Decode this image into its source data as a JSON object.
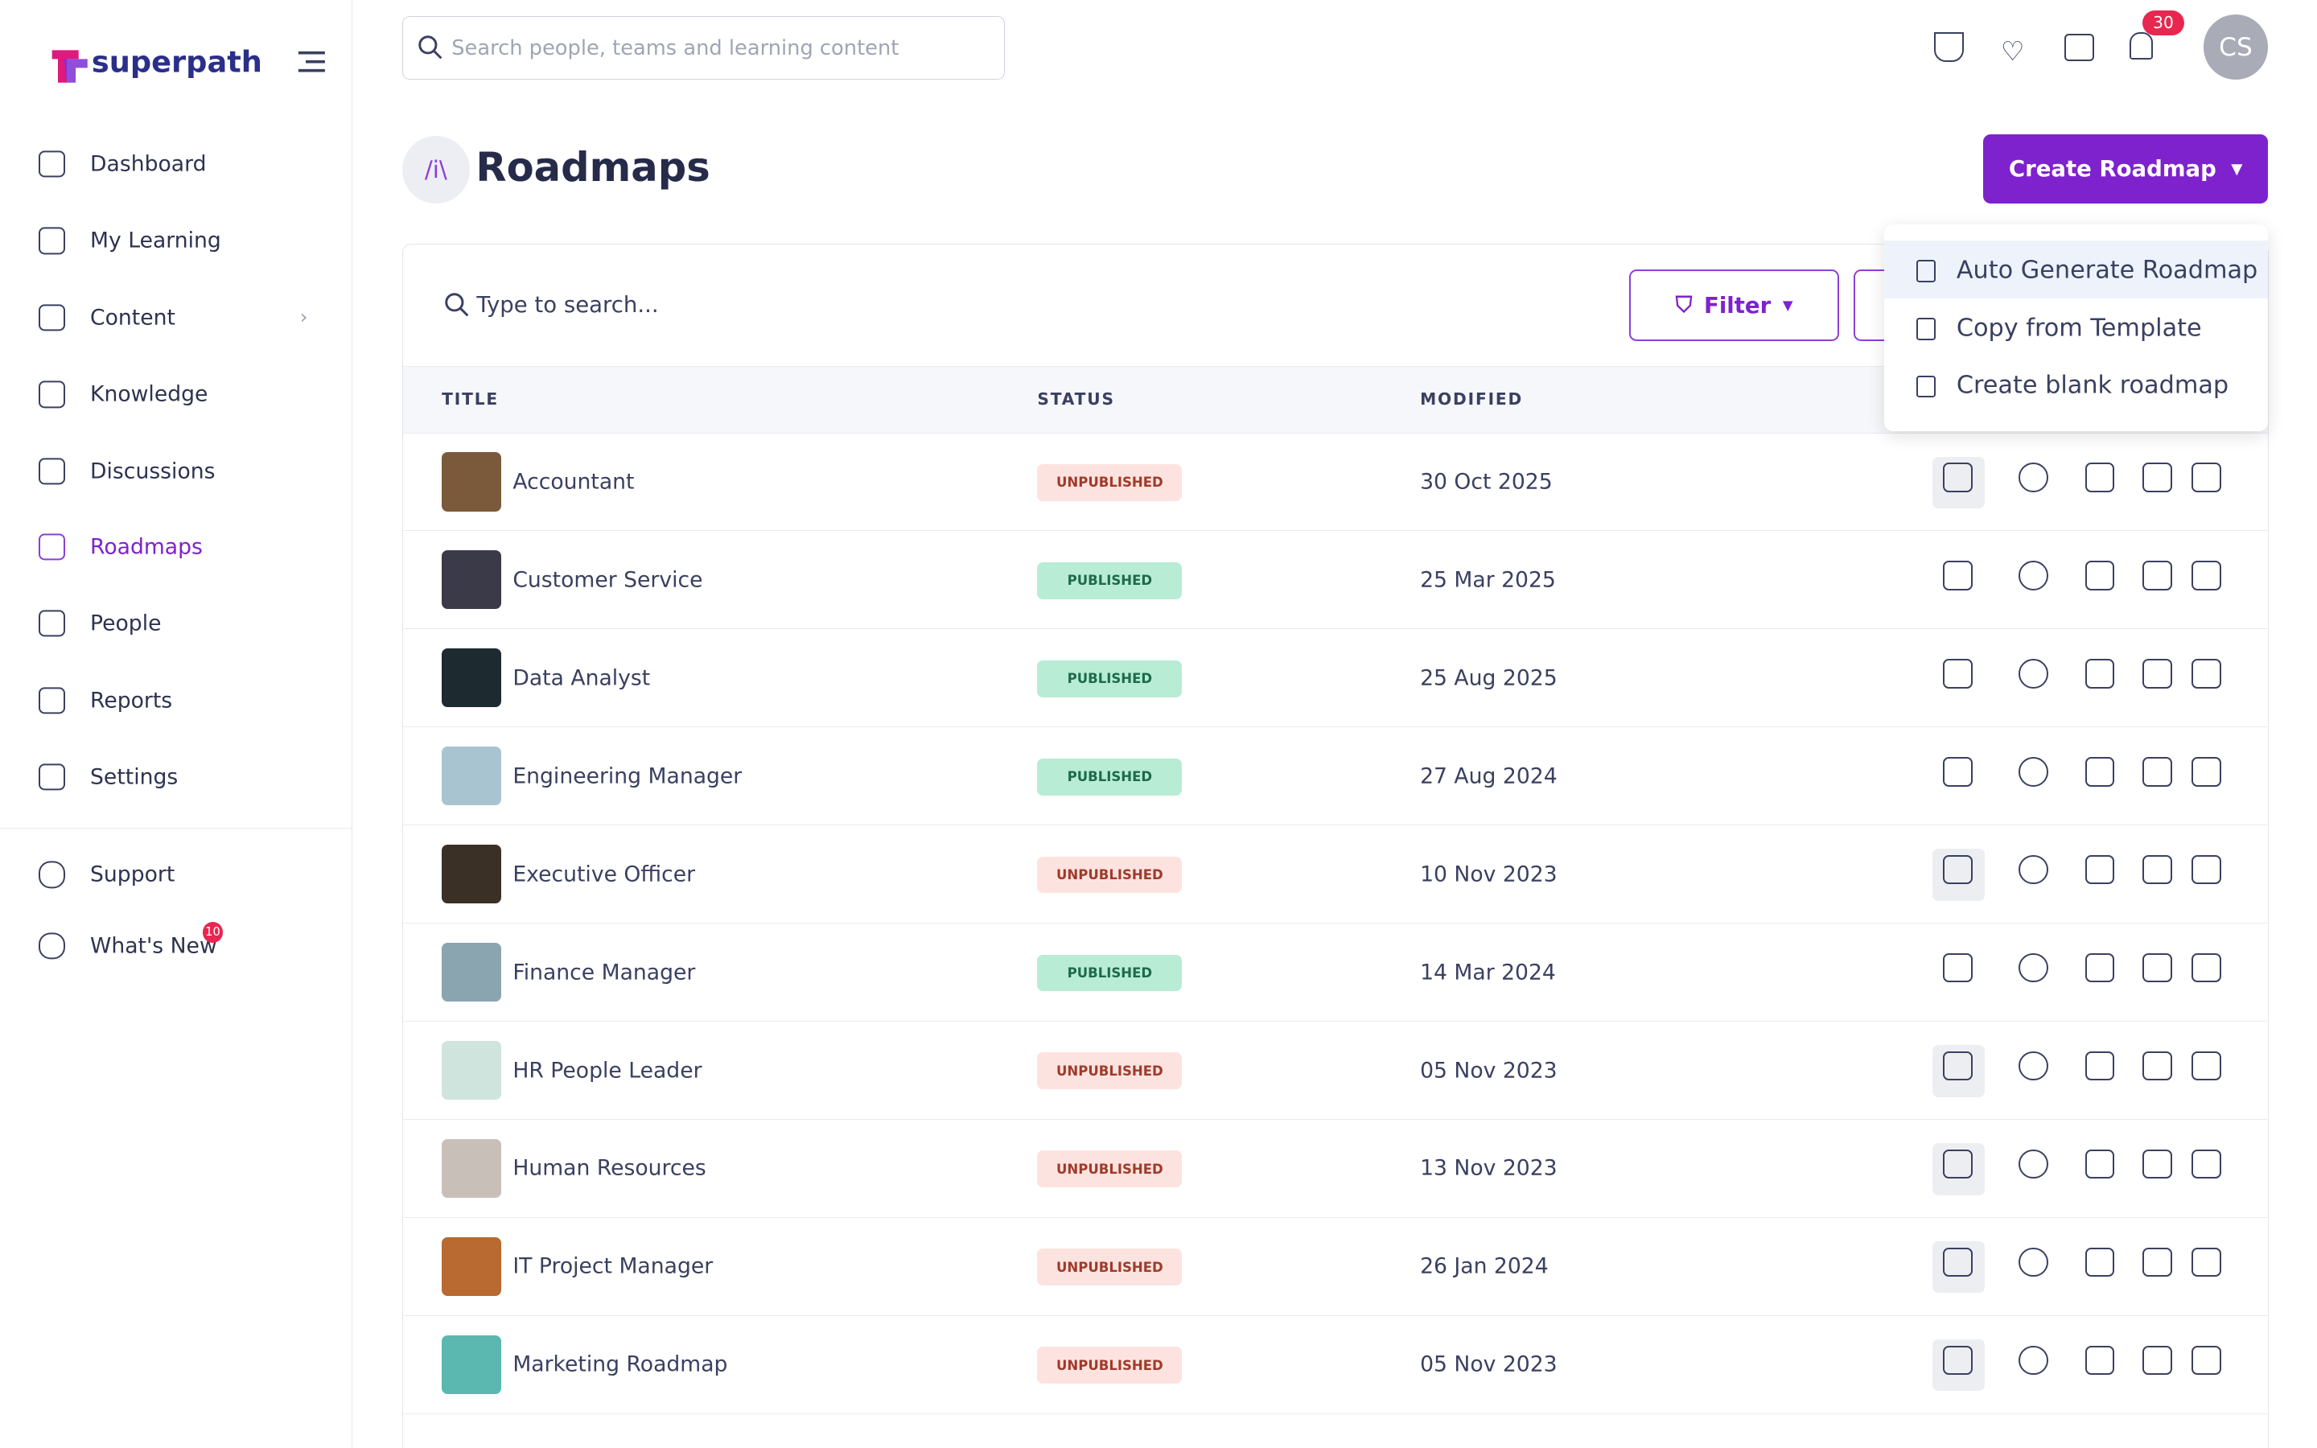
{
  "brand": "superpath",
  "search_placeholder": "Search people, teams and learning content",
  "notifications": 30,
  "avatar": "CS",
  "nav": [
    "Dashboard",
    "My Learning",
    "Content",
    "Knowledge",
    "Discussions",
    "Roadmaps",
    "People",
    "Reports",
    "Settings"
  ],
  "nav_bottom": [
    "Support",
    "What's New"
  ],
  "whats_new_badge": 10,
  "page": {
    "title": "Roadmaps",
    "create_button": "Create Roadmap",
    "menu": [
      "Auto Generate Roadmap",
      "Copy from Template",
      "Create blank roadmap"
    ],
    "table_search": "Type to search...",
    "filter": "Filter",
    "columns": [
      "TITLE",
      "STATUS",
      "MODIFIED"
    ],
    "rows": [
      {
        "title": "Accountant",
        "status": "UNPUBLISHED",
        "modified": "30 Oct 2025"
      },
      {
        "title": "Customer Service",
        "status": "PUBLISHED",
        "modified": "25 Mar 2025"
      },
      {
        "title": "Data Analyst",
        "status": "PUBLISHED",
        "modified": "25 Aug 2025"
      },
      {
        "title": "Engineering Manager",
        "status": "PUBLISHED",
        "modified": "27 Aug 2024"
      },
      {
        "title": "Executive Officer",
        "status": "UNPUBLISHED",
        "modified": "10 Nov 2023"
      },
      {
        "title": "Finance Manager",
        "status": "PUBLISHED",
        "modified": "14 Mar 2024"
      },
      {
        "title": "HR People Leader",
        "status": "UNPUBLISHED",
        "modified": "05 Nov 2023"
      },
      {
        "title": "Human Resources",
        "status": "UNPUBLISHED",
        "modified": "13 Nov 2023"
      },
      {
        "title": "IT Project Manager",
        "status": "UNPUBLISHED",
        "modified": "26 Jan 2024"
      },
      {
        "title": "Marketing Roadmap",
        "status": "UNPUBLISHED",
        "modified": "05 Nov 2023"
      }
    ]
  }
}
